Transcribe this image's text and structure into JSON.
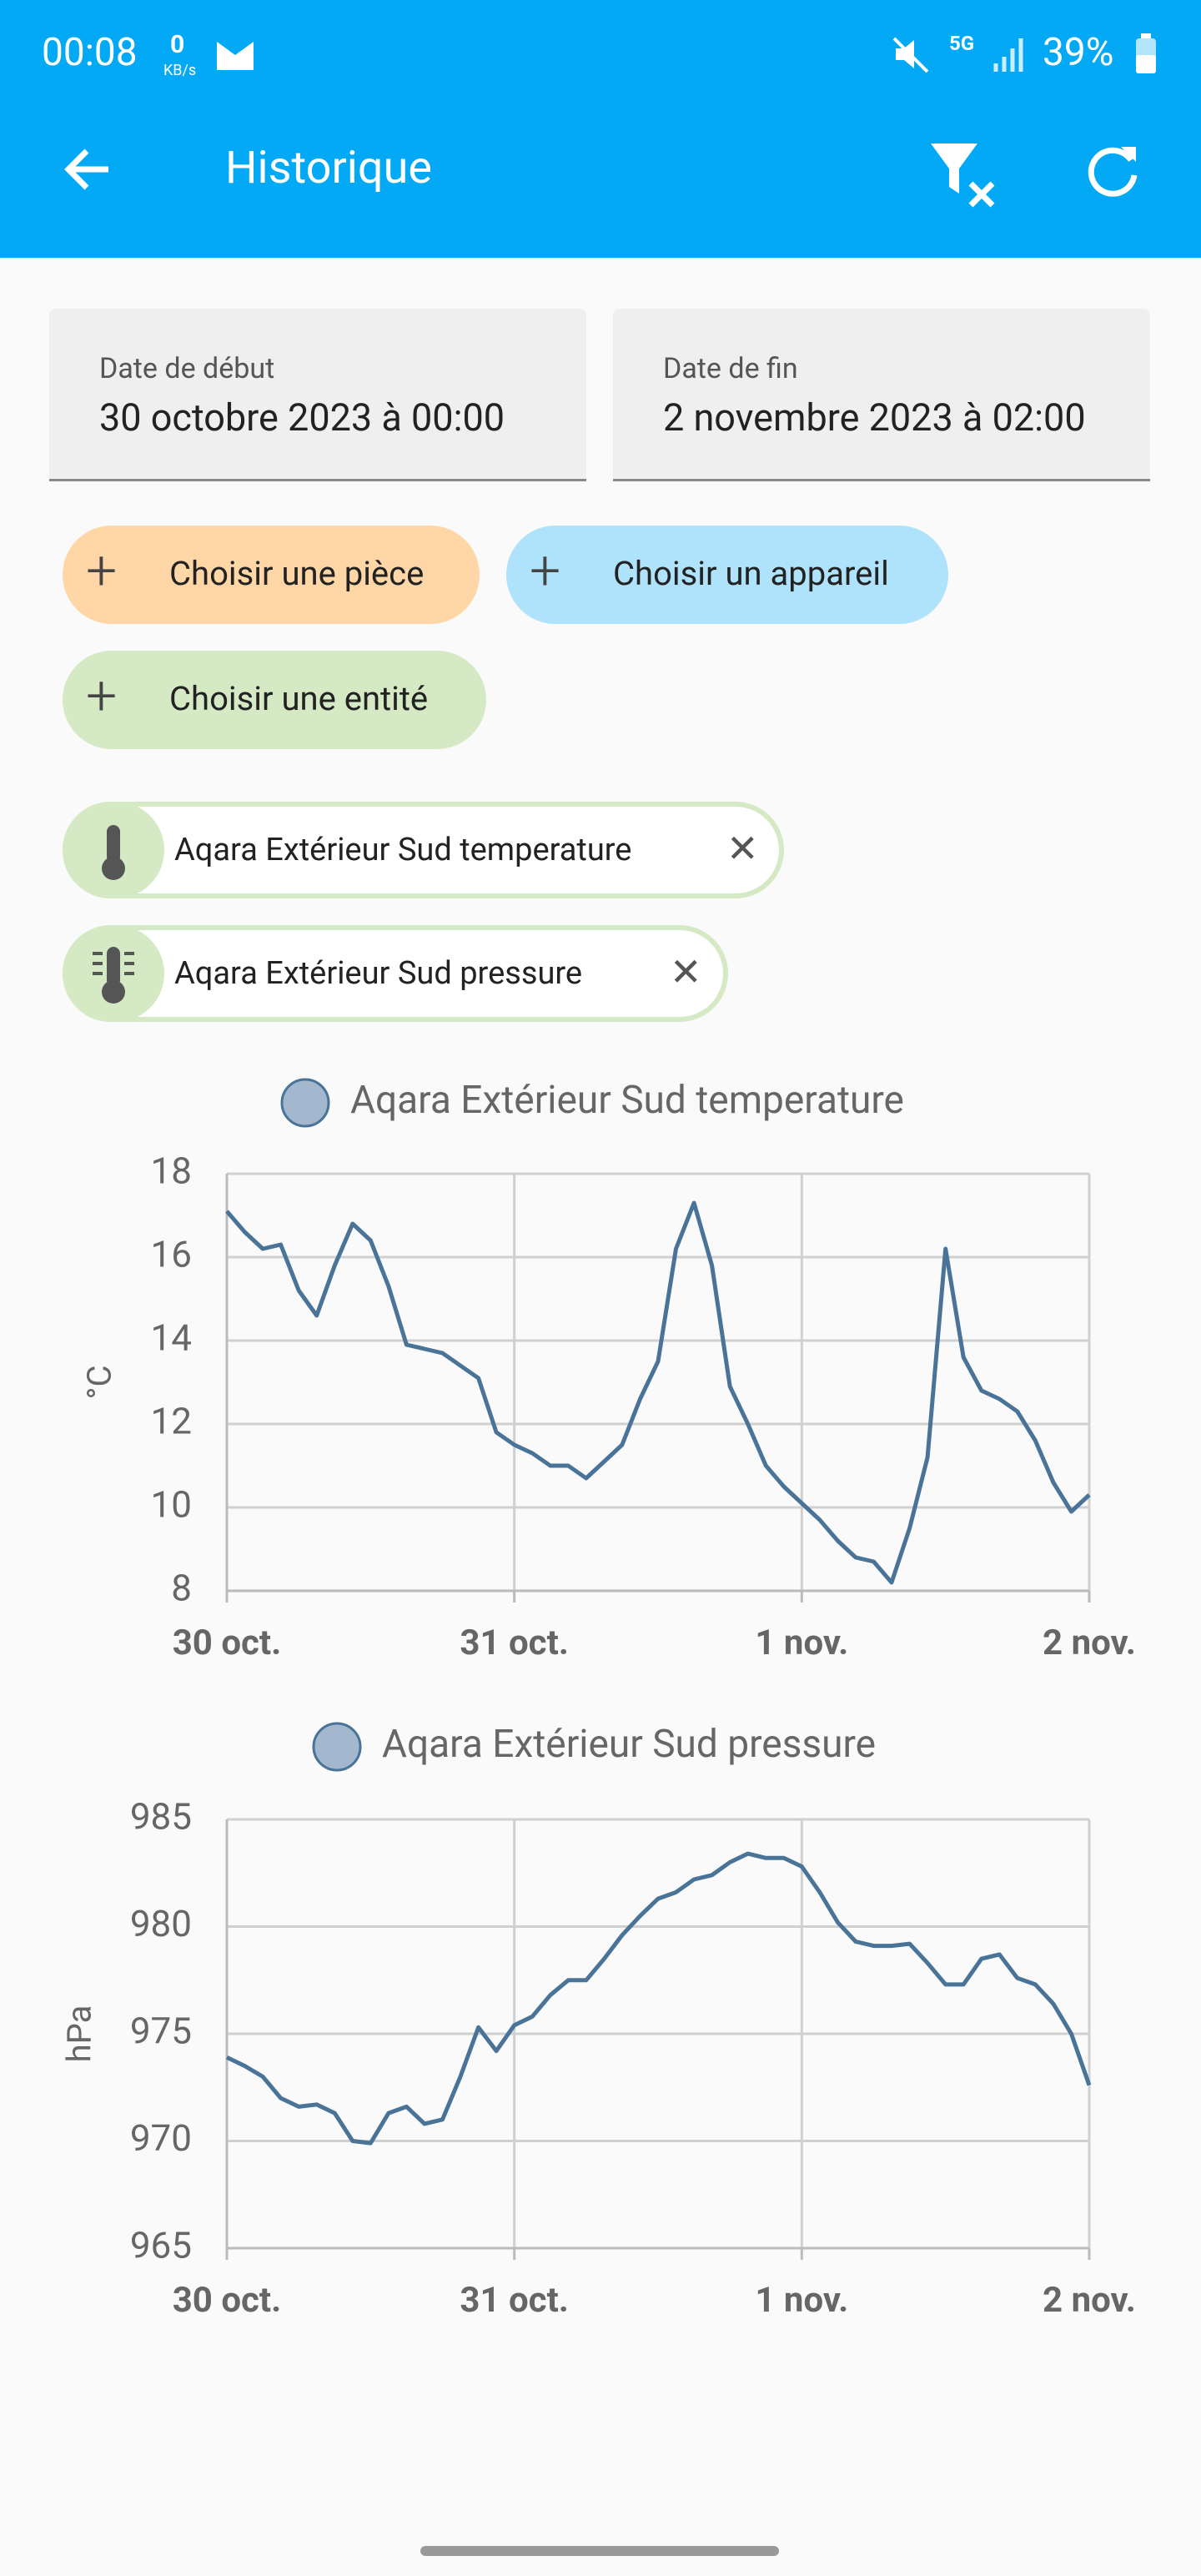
{
  "status_bar": {
    "time": "00:08",
    "net_speed": "0",
    "net_unit": "KB/s",
    "network": "5G",
    "battery": "39%"
  },
  "app_bar": {
    "title": "Historique"
  },
  "date_fields": [
    {
      "label": "Date de début",
      "value": "30 octobre 2023 à 00:00"
    },
    {
      "label": "Date de fin",
      "value": "2 novembre 2023 à 02:00"
    }
  ],
  "filter_chips": [
    "Choisir une pièce",
    "Choisir un appareil",
    "Choisir une entité"
  ],
  "selected_entities": [
    "Aqara Extérieur Sud temperature",
    "Aqara Extérieur Sud pressure"
  ],
  "chart_data": [
    {
      "type": "line",
      "ylabel": "°C",
      "x": [
        0,
        0.0625,
        0.125,
        0.1875,
        0.25,
        0.3125,
        0.375,
        0.4375,
        0.5,
        0.5625,
        0.625,
        0.6875,
        0.75,
        0.8125,
        0.875,
        0.9375,
        1,
        1.0625,
        1.125,
        1.1875,
        1.25,
        1.3125,
        1.375,
        1.4375,
        1.5,
        1.5625,
        1.625,
        1.6875,
        1.75,
        1.8125,
        1.875,
        1.9375,
        2,
        2.0625,
        2.125,
        2.1875,
        2.25,
        2.3125,
        2.375,
        2.4375,
        2.5,
        2.5625,
        2.625,
        2.6875,
        2.75,
        2.8125,
        2.875,
        2.9375,
        3
      ],
      "series": [
        {
          "name": "Aqara Extérieur Sud temperature",
          "color": "#4a7398",
          "legend_color": "#a3b8cf",
          "values": [
            17.1,
            16.6,
            16.2,
            16.3,
            15.2,
            14.6,
            15.8,
            16.8,
            16.4,
            15.3,
            13.9,
            13.8,
            13.7,
            13.4,
            13.1,
            11.8,
            11.5,
            11.3,
            11.0,
            11.0,
            10.7,
            11.1,
            11.5,
            12.6,
            13.5,
            16.2,
            17.3,
            15.8,
            12.9,
            12.0,
            11.0,
            10.5,
            10.1,
            9.7,
            9.2,
            8.8,
            8.7,
            8.2,
            9.5,
            11.2,
            16.2,
            13.6,
            12.8,
            12.6,
            12.3,
            11.6,
            10.6,
            9.9,
            10.3
          ]
        }
      ],
      "xlim": [
        0,
        3
      ],
      "xticks": [
        {
          "value": 0,
          "label": "30 oct."
        },
        {
          "value": 1,
          "label": "31 oct."
        },
        {
          "value": 2,
          "label": "1 nov."
        },
        {
          "value": 3,
          "label": "2 nov."
        }
      ],
      "ylim": [
        8,
        18
      ],
      "yticks": [
        8,
        10,
        12,
        14,
        16,
        18
      ],
      "grid": true
    },
    {
      "type": "line",
      "ylabel": "hPa",
      "x": [
        0,
        0.0625,
        0.125,
        0.1875,
        0.25,
        0.3125,
        0.375,
        0.4375,
        0.5,
        0.5625,
        0.625,
        0.6875,
        0.75,
        0.8125,
        0.875,
        0.9375,
        1,
        1.0625,
        1.125,
        1.1875,
        1.25,
        1.3125,
        1.375,
        1.4375,
        1.5,
        1.5625,
        1.625,
        1.6875,
        1.75,
        1.8125,
        1.875,
        1.9375,
        2,
        2.0625,
        2.125,
        2.1875,
        2.25,
        2.3125,
        2.375,
        2.4375,
        2.5,
        2.5625,
        2.625,
        2.6875,
        2.75,
        2.8125,
        2.875,
        2.9375,
        3
      ],
      "series": [
        {
          "name": "Aqara Extérieur Sud pressure",
          "color": "#4a7398",
          "legend_color": "#a3b8cf",
          "values": [
            973.9,
            973.5,
            973.0,
            972.0,
            971.6,
            971.7,
            971.3,
            970.0,
            969.9,
            971.3,
            971.6,
            970.8,
            971.0,
            973.0,
            975.3,
            974.2,
            975.4,
            975.8,
            976.8,
            977.5,
            977.5,
            978.5,
            979.6,
            980.5,
            981.3,
            981.6,
            982.2,
            982.4,
            983.0,
            983.4,
            983.2,
            983.2,
            982.8,
            981.6,
            980.2,
            979.3,
            979.1,
            979.1,
            979.2,
            978.3,
            977.3,
            977.3,
            978.5,
            978.7,
            977.6,
            977.3,
            976.4,
            975.0,
            972.6
          ]
        }
      ],
      "xlim": [
        0,
        3
      ],
      "xticks": [
        {
          "value": 0,
          "label": "30 oct."
        },
        {
          "value": 1,
          "label": "31 oct."
        },
        {
          "value": 2,
          "label": "1 nov."
        },
        {
          "value": 3,
          "label": "2 nov."
        }
      ],
      "ylim": [
        965,
        985
      ],
      "yticks": [
        965,
        970,
        975,
        980,
        985
      ],
      "grid": true
    }
  ]
}
